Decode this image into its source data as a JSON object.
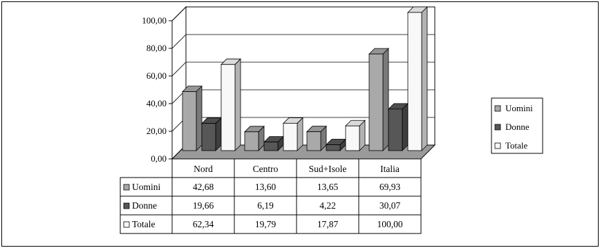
{
  "chart_data": {
    "type": "bar",
    "categories": [
      "Nord",
      "Centro",
      "Sud+Isole",
      "Italia"
    ],
    "series": [
      {
        "name": "Uomini",
        "values": [
          42.68,
          13.6,
          13.65,
          69.93
        ],
        "labels": [
          "42,68",
          "13,60",
          "13,65",
          "69,93"
        ],
        "color": "#a9a9a9"
      },
      {
        "name": "Donne",
        "values": [
          19.66,
          6.19,
          4.22,
          30.07
        ],
        "labels": [
          "19,66",
          "6,19",
          "4,22",
          "30,07"
        ],
        "color": "#575757"
      },
      {
        "name": "Totale",
        "values": [
          62.34,
          19.79,
          17.87,
          100.0
        ],
        "labels": [
          "62,34",
          "19,79",
          "17,87",
          "100,00"
        ],
        "color": "#f8f8f8"
      }
    ],
    "yticks": [
      "0,00",
      "20,00",
      "40,00",
      "60,00",
      "80,00",
      "100,00"
    ],
    "ylim": [
      0,
      100
    ],
    "legend": "right",
    "grid": true,
    "data_table": true
  }
}
